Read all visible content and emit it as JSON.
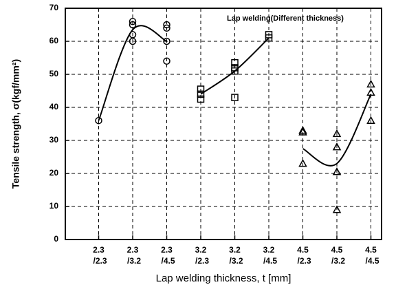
{
  "chart_data": {
    "type": "scatter",
    "title": "Lap welding(Different thickness)",
    "x_label": "Lap welding thickness, t [mm]",
    "y_label": "Tensile strength, σ(kgf/mm²)",
    "categories": [
      [
        "2.3",
        "/2.3"
      ],
      [
        "2.3",
        "/3.2"
      ],
      [
        "2.3",
        "/4.5"
      ],
      [
        "3.2",
        "/2.3"
      ],
      [
        "3.2",
        "/3.2"
      ],
      [
        "3.2",
        "/4.5"
      ],
      [
        "4.5",
        "/2.3"
      ],
      [
        "4.5",
        "/3.2"
      ],
      [
        "4.5",
        "/4.5"
      ]
    ],
    "ylim": [
      0,
      70
    ],
    "yticks": [
      0,
      10,
      20,
      30,
      40,
      50,
      60,
      70
    ],
    "grid": true,
    "series": [
      {
        "marker": "circle",
        "color": "#000000",
        "values": [
          [
            36
          ],
          [
            60,
            62,
            65,
            66
          ],
          [
            54,
            60,
            64,
            65
          ],
          null,
          null,
          null,
          null,
          null,
          null
        ],
        "fit": [
          36,
          63.5,
          60,
          null,
          null,
          null,
          null,
          null,
          null
        ]
      },
      {
        "marker": "square",
        "color": "#000000",
        "values": [
          null,
          null,
          null,
          [
            42.5,
            44,
            45.5
          ],
          [
            43,
            51,
            52,
            53.5
          ],
          [
            61,
            62
          ],
          null,
          null,
          null
        ],
        "fit": [
          null,
          null,
          null,
          44,
          51,
          61,
          null,
          null,
          null
        ]
      },
      {
        "marker": "triangle",
        "color": "#000000",
        "values": [
          null,
          null,
          null,
          null,
          null,
          null,
          [
            23,
            32.5,
            33
          ],
          [
            9,
            20.5,
            28,
            32
          ],
          [
            36,
            44.5,
            47
          ]
        ],
        "fit": [
          null,
          null,
          null,
          null,
          null,
          null,
          27.5,
          23,
          44
        ]
      }
    ]
  }
}
